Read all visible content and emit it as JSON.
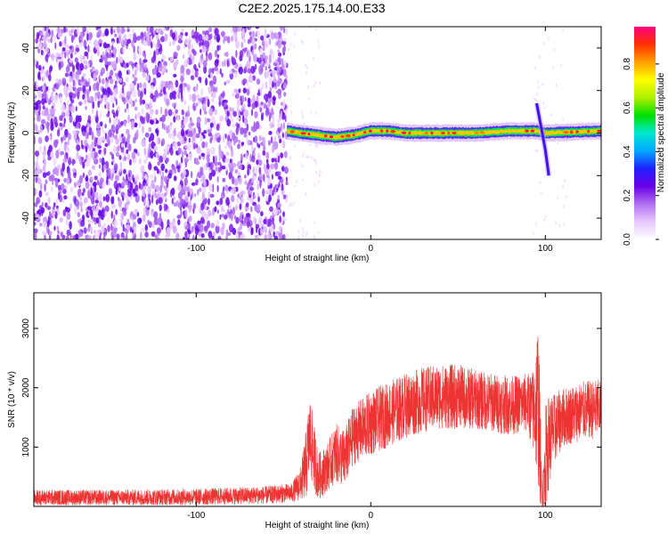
{
  "title": "C2E2.2025.175.14.00.E33",
  "chart_data": [
    {
      "type": "heatmap",
      "xlabel": "Height of straight line (km)",
      "ylabel": "Frequency (Hz)",
      "xlim": [
        -193,
        132
      ],
      "ylim": [
        -50,
        50
      ],
      "xticks": [
        -100,
        0,
        100
      ],
      "yticks": [
        -40,
        -20,
        0,
        20,
        40
      ],
      "colorbar": {
        "label": "Normalized spectral amplitude",
        "range": [
          0,
          0.97
        ],
        "ticks": [
          0.0,
          0.2,
          0.4,
          0.6,
          0.8
        ],
        "colors": [
          "#ffffff",
          "#e8c8ff",
          "#b070f0",
          "#6a00e8",
          "#2020ff",
          "#00a8ff",
          "#00e8d0",
          "#00e000",
          "#b0f000",
          "#ffff00",
          "#ffa000",
          "#ff3000",
          "#ff0080"
        ]
      },
      "features": {
        "noise_region_x": [
          -193,
          -48
        ],
        "carrier_line": [
          [
            -48,
            1
          ],
          [
            -40,
            0
          ],
          [
            -30,
            -1
          ],
          [
            -20,
            -2
          ],
          [
            -10,
            -1
          ],
          [
            0,
            1
          ],
          [
            10,
            1
          ],
          [
            20,
            0
          ],
          [
            40,
            0
          ],
          [
            60,
            0
          ],
          [
            80,
            1
          ],
          [
            95,
            1
          ],
          [
            100,
            0
          ],
          [
            132,
            1
          ]
        ],
        "spike_near_x": 97,
        "spike_range": [
          -20,
          14
        ],
        "grid": false
      }
    },
    {
      "type": "line",
      "xlabel": "Height of straight line (km)",
      "ylabel": "SNR (10 * v/v)",
      "xlim": [
        -193,
        132
      ],
      "ylim": [
        0,
        3600
      ],
      "xticks": [
        -100,
        0,
        100
      ],
      "yticks": [
        1000,
        2000,
        3000
      ],
      "color": "#ee3333",
      "profile": {
        "x": [
          -193,
          -150,
          -100,
          -60,
          -45,
          -40,
          -37,
          -35,
          -33,
          -30,
          -25,
          -20,
          -15,
          -10,
          0,
          10,
          20,
          30,
          40,
          50,
          60,
          70,
          80,
          90,
          93,
          96,
          98,
          100,
          102,
          105,
          110,
          120,
          132
        ],
        "mean": [
          150,
          150,
          160,
          190,
          230,
          400,
          700,
          1200,
          900,
          500,
          650,
          900,
          800,
          1200,
          1400,
          1550,
          1700,
          1800,
          1850,
          1850,
          1800,
          1750,
          1700,
          1750,
          1600,
          1800,
          100,
          800,
          1100,
          1300,
          1500,
          1600,
          1650
        ],
        "noise": [
          130,
          130,
          140,
          150,
          160,
          300,
          600,
          700,
          600,
          400,
          400,
          500,
          500,
          500,
          550,
          550,
          550,
          550,
          550,
          550,
          500,
          500,
          500,
          500,
          700,
          1500,
          300,
          900,
          800,
          600,
          500,
          500,
          500
        ]
      },
      "grid": false
    }
  ]
}
